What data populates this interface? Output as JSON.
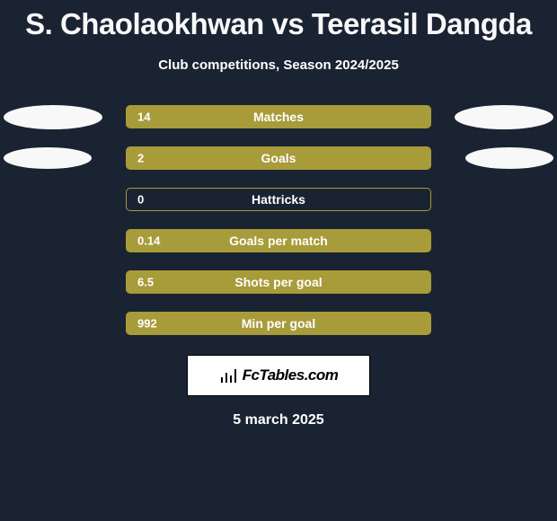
{
  "title": {
    "player1": "S. Chaolaokhwan",
    "vs": "vs",
    "player2": "Teerasil Dangda"
  },
  "subtitle": "Club competitions, Season 2024/2025",
  "background_color": "#1a2332",
  "accent_color": "#a89b3a",
  "ellipse_color": "#f8f8f8",
  "stats": [
    {
      "value": "14",
      "label": "Matches",
      "filled": true,
      "left_ellipse": true,
      "right_ellipse": true,
      "ellipse_size": "big"
    },
    {
      "value": "2",
      "label": "Goals",
      "filled": true,
      "left_ellipse": true,
      "right_ellipse": true,
      "ellipse_size": "small"
    },
    {
      "value": "0",
      "label": "Hattricks",
      "filled": false,
      "left_ellipse": false,
      "right_ellipse": false
    },
    {
      "value": "0.14",
      "label": "Goals per match",
      "filled": true,
      "left_ellipse": false,
      "right_ellipse": false
    },
    {
      "value": "6.5",
      "label": "Shots per goal",
      "filled": true,
      "left_ellipse": false,
      "right_ellipse": false
    },
    {
      "value": "992",
      "label": "Min per goal",
      "filled": true,
      "left_ellipse": false,
      "right_ellipse": false
    }
  ],
  "logo_text": "FcTables.com",
  "date": "5 march 2025"
}
